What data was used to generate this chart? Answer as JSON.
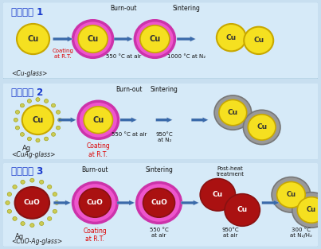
{
  "fig_bg": "#c8dff0",
  "panel_bg": "#d6eaf8",
  "panel_border": "#8ab4cc",
  "title_color": "#1a3bcc",
  "arrow_color": "#3a6aaa",
  "yellow_core": "#f5e020",
  "yellow_edge": "#c8a800",
  "red_core": "#aa1111",
  "red_edge": "#881111",
  "glass_color": "#ee55cc",
  "glass_edge": "#cc33aa",
  "gray_shell": "#999999",
  "gray_edge": "#777777",
  "ag_dot_color": "#cccc55",
  "ag_dot_edge": "#999900",
  "panels": [
    {
      "title": "프로세스 1",
      "subtitle": "<Cu-glass>"
    },
    {
      "title": "프로세스 2",
      "subtitle": "<CuAg-glass>"
    },
    {
      "title": "프로세스 3",
      "subtitle": "<CuO-Ag-glass>"
    }
  ]
}
